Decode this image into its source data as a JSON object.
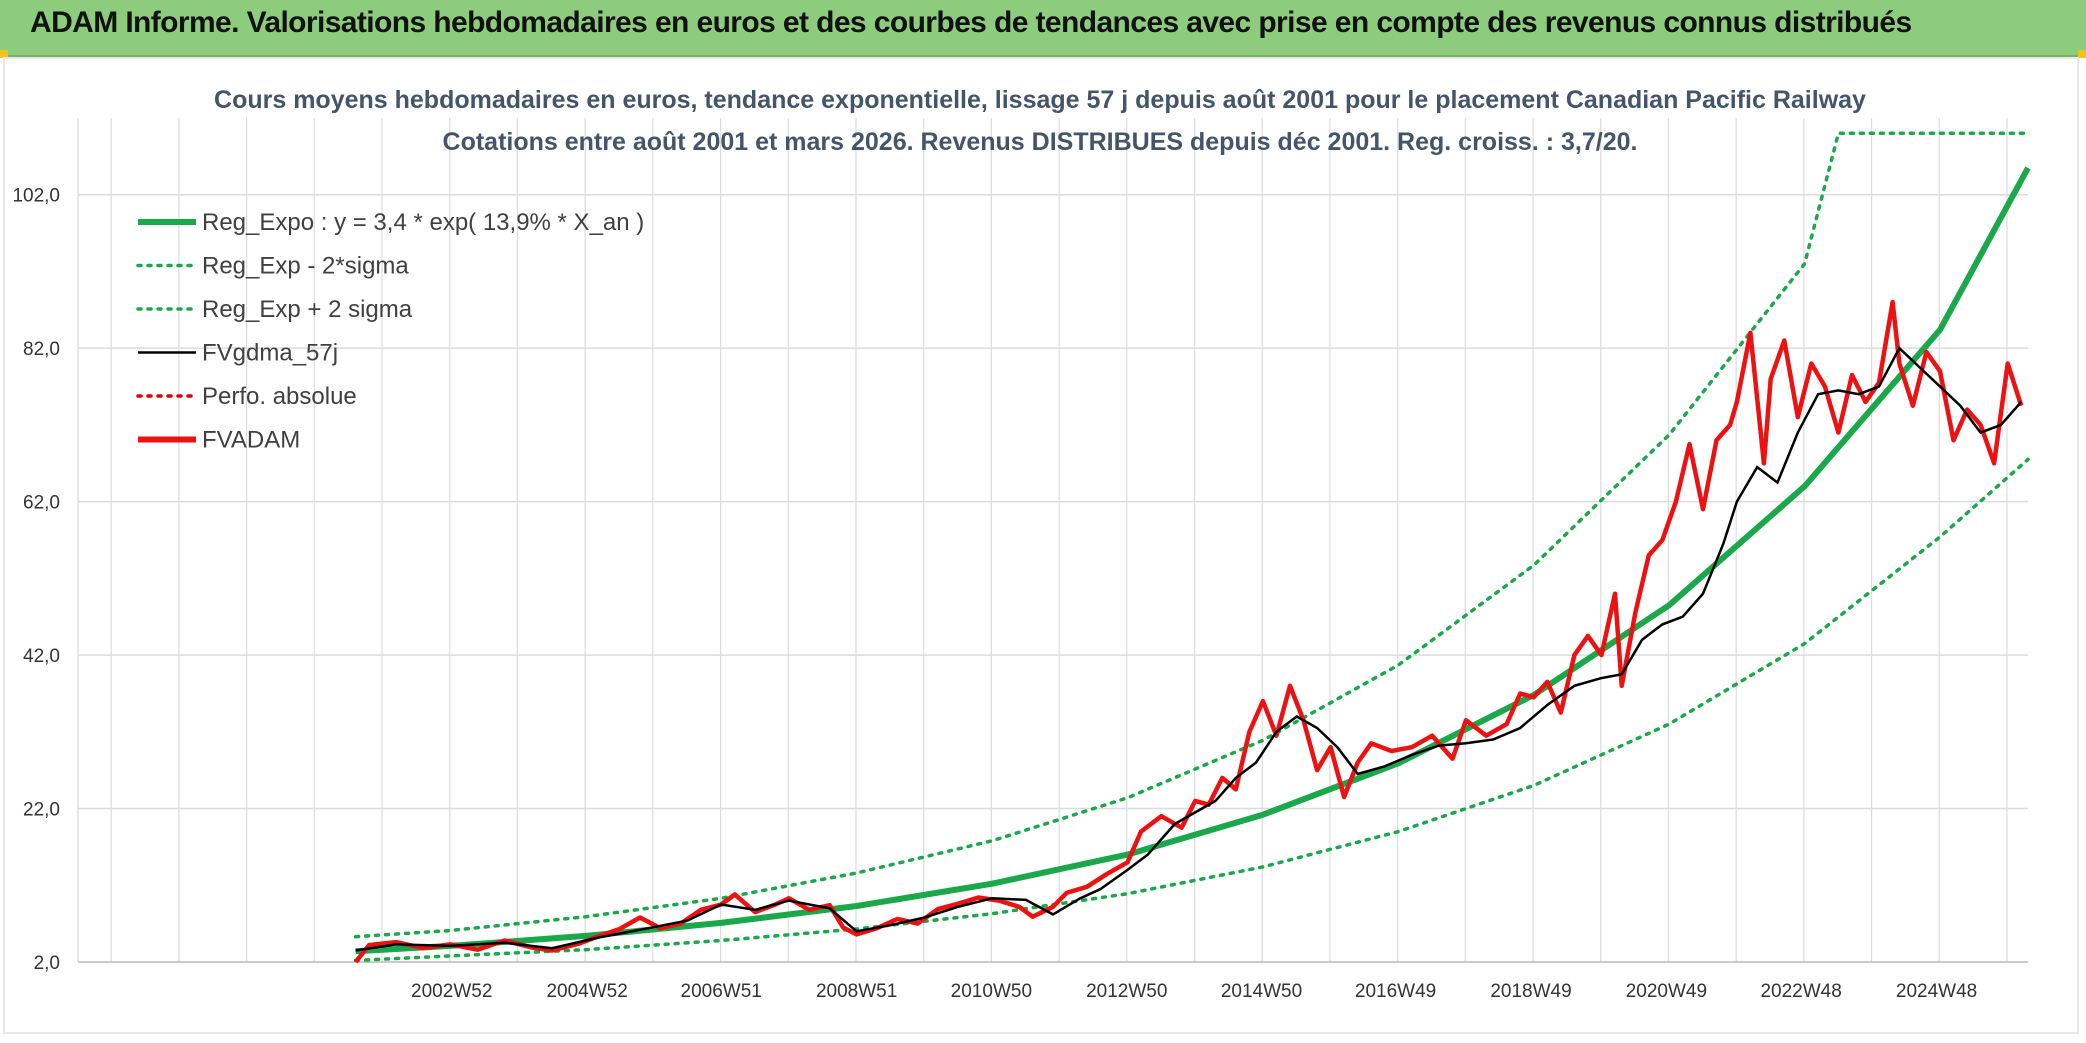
{
  "banner": {
    "title": "ADAM Informe. Valorisations hebdomadaires en euros et des courbes de tendances avec prise en compte des revenus connus distribués"
  },
  "colors": {
    "banner_bg": "#8ccc7c",
    "regression": "#1aa84a",
    "sigma": "#1aa84a",
    "moving_avg": "#000000",
    "perfo": "#e00000",
    "fvadam": "#ee1111",
    "grid": "#dcdcdc"
  },
  "chart_data": {
    "type": "line",
    "title": "Cours moyens hebdomadaires en euros, tendance exponentielle, lissage 57 j depuis août 2001 pour le placement Canadian Pacific Railway",
    "subtitle": "Cotations entre août 2001 et mars 2026. Revenus DISTRIBUES depuis déc 2001. Reg. croiss. : 3,7/20.",
    "xlabel": "",
    "ylabel": "",
    "ylim": [
      2,
      112
    ],
    "yticks": [
      2,
      22,
      42,
      62,
      82,
      102
    ],
    "ytick_labels": [
      "2,0",
      "22,0",
      "42,0",
      "62,0",
      "82,0",
      "102,0"
    ],
    "xlim": [
      1997.5,
      2026.3
    ],
    "xticks": [
      2002.99,
      2004.99,
      2006.97,
      2008.97,
      2010.96,
      2012.96,
      2014.95,
      2016.93,
      2018.93,
      2020.93,
      2022.92,
      2024.92
    ],
    "xtick_labels": [
      "2002W52",
      "2004W52",
      "2006W51",
      "2008W51",
      "2010W50",
      "2012W50",
      "2014W50",
      "2016W49",
      "2018W49",
      "2020W49",
      "2022W48",
      "2024W48"
    ],
    "grid": true,
    "legend_position": "top-left",
    "series": [
      {
        "name": "Reg_Expo : y = 3,4 * exp( 13,9% *  X_an )",
        "style": "solid-thick",
        "color": "#1aa84a",
        "x": [
          2001.6,
          2003,
          2005,
          2007,
          2009,
          2011,
          2013,
          2015,
          2017,
          2019,
          2021,
          2023,
          2025,
          2026.3
        ],
        "y": [
          3.4,
          4.1,
          5.4,
          7.1,
          9.3,
          12.2,
          16.0,
          21.2,
          27.9,
          36.8,
          48.5,
          64.0,
          84.4,
          105.5
        ]
      },
      {
        "name": "Reg_Exp - 2*sigma",
        "style": "dotted",
        "color": "#1aa84a",
        "x": [
          2001.6,
          2003,
          2005,
          2007,
          2009,
          2011,
          2013,
          2015,
          2017,
          2019,
          2021,
          2023,
          2025,
          2026.3
        ],
        "y": [
          2.2,
          2.8,
          3.6,
          4.8,
          6.3,
          8.3,
          10.9,
          14.4,
          19.0,
          25.0,
          33.0,
          43.5,
          57.4,
          67.5
        ]
      },
      {
        "name": "Reg_Exp + 2 sigma",
        "style": "dotted",
        "color": "#1aa84a",
        "x": [
          2001.6,
          2003,
          2005,
          2007,
          2009,
          2011,
          2013,
          2015,
          2017,
          2019,
          2021,
          2023,
          2023.5,
          2026.3
        ],
        "y": [
          5.3,
          6.1,
          7.9,
          10.3,
          13.6,
          17.8,
          23.4,
          30.9,
          40.7,
          53.7,
          70.7,
          93.0,
          110.0,
          110.0
        ]
      },
      {
        "name": "FVgdma_57j",
        "style": "solid",
        "color": "#000000",
        "x": [
          2001.6,
          2002.2,
          2003.0,
          2003.8,
          2004.5,
          2005.2,
          2005.8,
          2006.5,
          2007.0,
          2007.5,
          2008.0,
          2008.6,
          2009.0,
          2009.5,
          2010.0,
          2010.5,
          2011.0,
          2011.5,
          2011.9,
          2012.3,
          2012.6,
          2013.0,
          2013.3,
          2013.7,
          2014.0,
          2014.3,
          2014.6,
          2014.9,
          2015.2,
          2015.5,
          2015.8,
          2016.1,
          2016.4,
          2016.8,
          2017.2,
          2017.6,
          2018.0,
          2018.4,
          2018.8,
          2019.2,
          2019.6,
          2020.0,
          2020.3,
          2020.6,
          2020.9,
          2021.2,
          2021.5,
          2021.8,
          2022.0,
          2022.3,
          2022.6,
          2022.9,
          2023.2,
          2023.5,
          2023.8,
          2024.1,
          2024.4,
          2024.7,
          2025.0,
          2025.3,
          2025.6,
          2025.9,
          2026.2
        ],
        "y": [
          3.5,
          4.3,
          4.1,
          4.5,
          3.8,
          5.2,
          6.2,
          7.4,
          9.5,
          8.8,
          10.0,
          9.0,
          6.0,
          6.8,
          7.8,
          9.2,
          10.3,
          10.1,
          8.2,
          10.3,
          11.5,
          14.0,
          16.0,
          20.0,
          21.5,
          23.0,
          26.0,
          28.0,
          32.0,
          34.0,
          32.5,
          30.0,
          26.5,
          27.5,
          29.0,
          30.2,
          30.5,
          31.0,
          32.5,
          35.5,
          38.0,
          39.0,
          39.5,
          44.0,
          46.0,
          47.0,
          50.0,
          56.5,
          62.0,
          66.5,
          64.5,
          71.0,
          76.0,
          76.5,
          76.0,
          77.0,
          82.0,
          79.5,
          77.0,
          74.5,
          71.0,
          72.0,
          75.0
        ]
      },
      {
        "name": "Perfo. absolue",
        "style": "dotted",
        "color": "#e00000",
        "x": [],
        "y": []
      },
      {
        "name": "FVADAM",
        "style": "solid-thick",
        "color": "#ee1111",
        "x": [
          2001.6,
          2001.8,
          2002.2,
          2002.6,
          2003.0,
          2003.4,
          2003.8,
          2004.2,
          2004.5,
          2004.9,
          2005.2,
          2005.5,
          2005.8,
          2006.1,
          2006.4,
          2006.7,
          2007.0,
          2007.2,
          2007.5,
          2007.8,
          2008.0,
          2008.3,
          2008.6,
          2008.8,
          2009.0,
          2009.3,
          2009.6,
          2009.9,
          2010.2,
          2010.5,
          2010.8,
          2011.1,
          2011.4,
          2011.6,
          2011.9,
          2012.1,
          2012.4,
          2012.7,
          2013.0,
          2013.2,
          2013.5,
          2013.8,
          2014.0,
          2014.2,
          2014.4,
          2014.6,
          2014.8,
          2015.0,
          2015.2,
          2015.4,
          2015.6,
          2015.8,
          2016.0,
          2016.2,
          2016.4,
          2016.6,
          2016.9,
          2017.2,
          2017.5,
          2017.8,
          2018.0,
          2018.3,
          2018.6,
          2018.8,
          2019.0,
          2019.2,
          2019.4,
          2019.6,
          2019.8,
          2020.0,
          2020.2,
          2020.3,
          2020.5,
          2020.7,
          2020.9,
          2021.1,
          2021.3,
          2021.5,
          2021.7,
          2021.9,
          2022.0,
          2022.2,
          2022.4,
          2022.5,
          2022.7,
          2022.9,
          2023.1,
          2023.3,
          2023.5,
          2023.7,
          2023.9,
          2024.1,
          2024.3,
          2024.4,
          2024.6,
          2024.8,
          2025.0,
          2025.2,
          2025.4,
          2025.6,
          2025.8,
          2026.0,
          2026.2
        ],
        "y": [
          2.0,
          4.2,
          4.6,
          3.8,
          4.3,
          3.6,
          4.8,
          3.9,
          3.5,
          4.4,
          5.4,
          6.3,
          7.8,
          6.4,
          7.0,
          8.8,
          9.5,
          10.8,
          8.5,
          9.5,
          10.3,
          8.8,
          9.4,
          6.5,
          5.6,
          6.4,
          7.6,
          7.0,
          8.9,
          9.6,
          10.4,
          10.0,
          9.2,
          7.9,
          9.2,
          11.0,
          11.8,
          13.5,
          15.0,
          19.0,
          21.0,
          19.5,
          23.0,
          22.5,
          26.0,
          24.5,
          32.0,
          36.0,
          31.5,
          38.0,
          33.5,
          27.0,
          30.0,
          23.5,
          28.0,
          30.5,
          29.5,
          30.0,
          31.5,
          28.5,
          33.5,
          31.5,
          33.0,
          37.0,
          36.5,
          38.5,
          34.5,
          42.0,
          44.5,
          42.0,
          50.0,
          38.0,
          47.5,
          55.0,
          57.0,
          62.0,
          69.5,
          61.0,
          70.0,
          72.0,
          75.0,
          84.0,
          67.0,
          78.0,
          83.0,
          73.0,
          80.0,
          77.0,
          71.0,
          78.5,
          75.0,
          77.5,
          88.0,
          80.0,
          74.5,
          81.5,
          79.0,
          70.0,
          74.0,
          72.0,
          67.0,
          80.0,
          74.5
        ]
      }
    ]
  }
}
